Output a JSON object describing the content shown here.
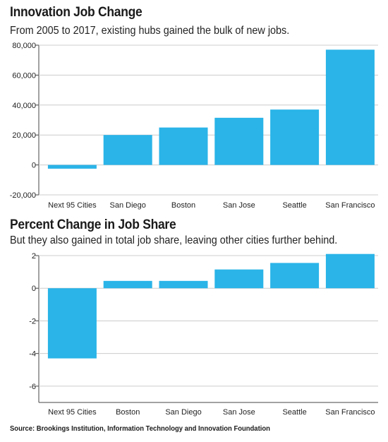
{
  "colors": {
    "bar": "#2ab4e8",
    "axis": "#444444",
    "grid": "#cccccc"
  },
  "chart_data": [
    {
      "type": "bar",
      "title": "Innovation Job Change",
      "subtitle": "From 2005 to 2017, existing hubs gained the bulk of new jobs.",
      "categories": [
        "Next 95 Cities",
        "San Diego",
        "Boston",
        "San Jose",
        "Seattle",
        "San Francisco"
      ],
      "values": [
        -2500,
        20000,
        25000,
        31500,
        37000,
        77000
      ],
      "yticks": [
        -20000,
        0,
        20000,
        40000,
        60000,
        80000
      ],
      "ytick_labels": [
        "-20,000",
        "0",
        "20,000",
        "40,000",
        "60,000",
        "80,000"
      ],
      "ylim": [
        -20000,
        80000
      ],
      "grid": true,
      "xlabel": "",
      "ylabel": ""
    },
    {
      "type": "bar",
      "title": "Percent Change in Job Share",
      "subtitle": "But they also gained in total job share, leaving other cities further behind.",
      "categories": [
        "Next 95 Cities",
        "Boston",
        "San Diego",
        "San Jose",
        "Seattle",
        "San Francisco"
      ],
      "values": [
        -4.3,
        0.45,
        0.45,
        1.15,
        1.55,
        2.1
      ],
      "yticks": [
        -6,
        -4,
        -2,
        0,
        2
      ],
      "ytick_labels": [
        "-6",
        "-4",
        "-2",
        "0",
        "2"
      ],
      "ylim": [
        -7,
        2
      ],
      "grid": true,
      "xlabel": "",
      "ylabel": ""
    }
  ],
  "source": "Source: Brookings Institution, Information Technology and Innovation Foundation"
}
